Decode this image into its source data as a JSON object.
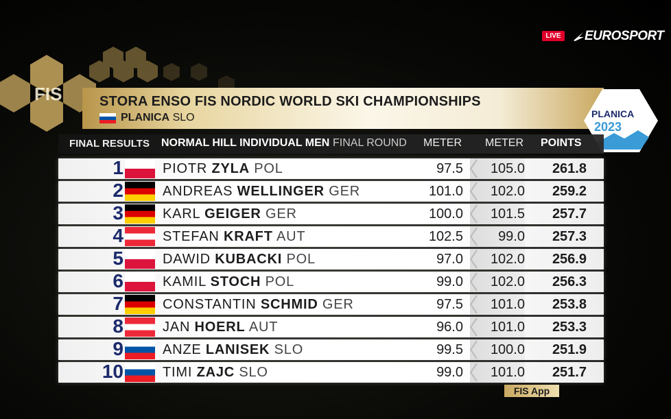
{
  "broadcast": {
    "live": "LIVE",
    "channel": "EUROSPORT"
  },
  "logo": {
    "fis": "FIS",
    "event_name": "PLANICA",
    "event_year": "2023"
  },
  "header": {
    "title": "STORA ENSO FIS NORDIC WORLD SKI CHAMPIONSHIPS",
    "venue": "PLANICA",
    "venue_country": "SLO"
  },
  "table": {
    "label": "FINAL RESULTS",
    "event": "NORMAL HILL INDIVIDUAL MEN",
    "round": "FINAL ROUND",
    "columns": [
      "METER",
      "METER",
      "POINTS"
    ],
    "rows": [
      {
        "rank": 1,
        "first_name": "PIOTR",
        "last_name": "ZYLA",
        "nation": "POL",
        "jump1": "97.5",
        "jump2": "105.0",
        "points": "261.8"
      },
      {
        "rank": 2,
        "first_name": "ANDREAS",
        "last_name": "WELLINGER",
        "nation": "GER",
        "jump1": "101.0",
        "jump2": "102.0",
        "points": "259.2"
      },
      {
        "rank": 3,
        "first_name": "KARL",
        "last_name": "GEIGER",
        "nation": "GER",
        "jump1": "100.0",
        "jump2": "101.5",
        "points": "257.7"
      },
      {
        "rank": 4,
        "first_name": "STEFAN",
        "last_name": "KRAFT",
        "nation": "AUT",
        "jump1": "102.5",
        "jump2": "99.0",
        "points": "257.3"
      },
      {
        "rank": 5,
        "first_name": "DAWID",
        "last_name": "KUBACKI",
        "nation": "POL",
        "jump1": "97.0",
        "jump2": "102.0",
        "points": "256.9"
      },
      {
        "rank": 6,
        "first_name": "KAMIL",
        "last_name": "STOCH",
        "nation": "POL",
        "jump1": "99.0",
        "jump2": "102.0",
        "points": "256.3"
      },
      {
        "rank": 7,
        "first_name": "CONSTANTIN",
        "last_name": "SCHMID",
        "nation": "GER",
        "jump1": "97.5",
        "jump2": "101.0",
        "points": "253.8"
      },
      {
        "rank": 8,
        "first_name": "JAN",
        "last_name": "HOERL",
        "nation": "AUT",
        "jump1": "96.0",
        "jump2": "101.0",
        "points": "253.3"
      },
      {
        "rank": 9,
        "first_name": "ANZE",
        "last_name": "LANISEK",
        "nation": "SLO",
        "jump1": "99.5",
        "jump2": "100.0",
        "points": "251.9"
      },
      {
        "rank": 10,
        "first_name": "TIMI",
        "last_name": "ZAJC",
        "nation": "SLO",
        "jump1": "99.0",
        "jump2": "101.0",
        "points": "251.7"
      }
    ]
  },
  "footer": {
    "app": "FIS App"
  }
}
